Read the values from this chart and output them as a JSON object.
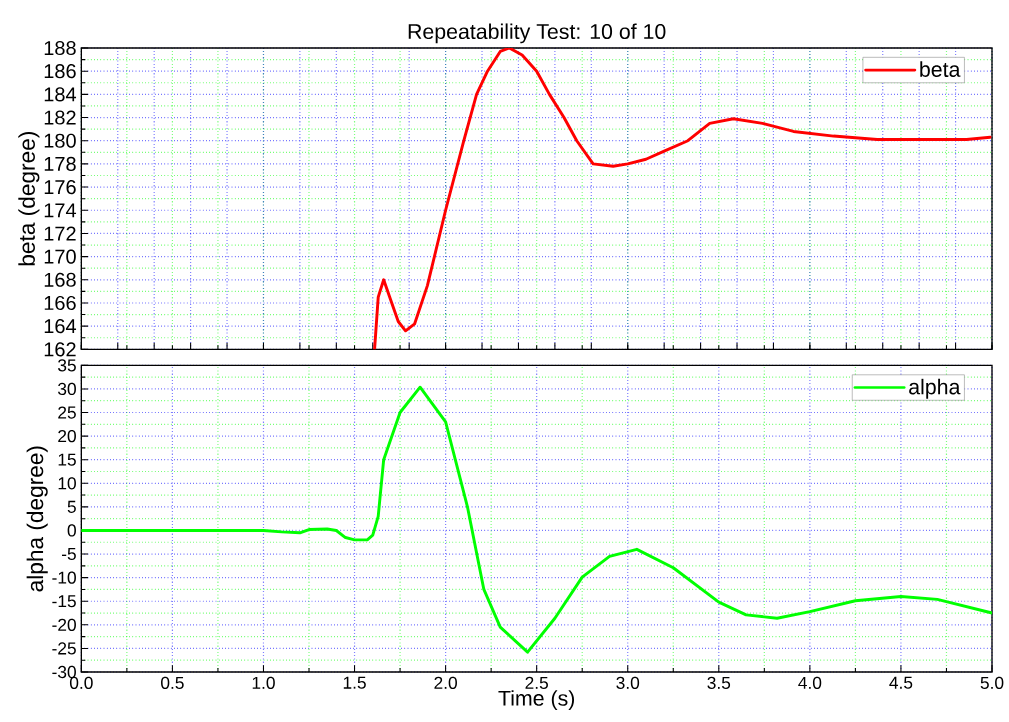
{
  "chart_data": [
    {
      "type": "line",
      "title": "Repeatability Test: 10 of 10",
      "ylabel": "beta (degree)",
      "xlim": [
        0,
        5
      ],
      "xticks": [
        {
          "value": 0,
          "label": null
        },
        {
          "value": 0.25,
          "label": null
        },
        {
          "value": 0.5,
          "label": null
        },
        {
          "value": 0.75,
          "label": null
        },
        {
          "value": 1,
          "label": null
        },
        {
          "value": 1.25,
          "label": null
        },
        {
          "value": 1.5,
          "label": null
        },
        {
          "value": 1.75,
          "label": null
        },
        {
          "value": 2,
          "label": null
        },
        {
          "value": 2.25,
          "label": null
        },
        {
          "value": 2.5,
          "label": null
        },
        {
          "value": 2.75,
          "label": null
        },
        {
          "value": 3,
          "label": null
        },
        {
          "value": 3.25,
          "label": null
        },
        {
          "value": 3.5,
          "label": null
        },
        {
          "value": 3.75,
          "label": null
        },
        {
          "value": 4,
          "label": null
        },
        {
          "value": 4.25,
          "label": null
        },
        {
          "value": 4.5,
          "label": null
        },
        {
          "value": 4.75,
          "label": null
        },
        {
          "value": 5,
          "label": null
        }
      ],
      "ylim": [
        162,
        188
      ],
      "yticks": [
        162,
        {
          "value": 163,
          "label": null
        },
        164,
        {
          "value": 165,
          "label": null
        },
        166,
        {
          "value": 167,
          "label": null
        },
        168,
        {
          "value": 169,
          "label": null
        },
        170,
        {
          "value": 171,
          "label": null
        },
        172,
        {
          "value": 173,
          "label": null
        },
        174,
        {
          "value": 175,
          "label": null
        },
        176,
        {
          "value": 177,
          "label": null
        },
        178,
        {
          "value": 179,
          "label": null
        },
        180,
        {
          "value": 181,
          "label": null
        },
        182,
        {
          "value": 183,
          "label": null
        },
        184,
        {
          "value": 185,
          "label": null
        },
        186,
        {
          "value": 187,
          "label": null
        },
        188
      ],
      "tick_labels": "y",
      "grid": true,
      "legend": "top right",
      "x": [
        1.61,
        1.63,
        1.66,
        1.7,
        1.74,
        1.78,
        1.83,
        1.9,
        2.0,
        2.1,
        2.17,
        2.23,
        2.3,
        2.35,
        2.42,
        2.5,
        2.57,
        2.65,
        2.72,
        2.81,
        2.92,
        3.0,
        3.1,
        3.2,
        3.33,
        3.45,
        3.58,
        3.74,
        3.91,
        4.13,
        4.37,
        4.6,
        4.86,
        4.99
      ],
      "series": [
        {
          "name": "beta",
          "color": "#ff0000",
          "values": [
            162,
            166.5,
            168,
            166.2,
            164.4,
            163.6,
            164.2,
            167.5,
            174,
            180,
            184,
            186,
            187.7,
            188,
            187.4,
            186,
            184,
            182,
            180,
            178,
            177.8,
            178,
            178.4,
            179.1,
            180,
            181.5,
            181.9,
            181.5,
            180.8,
            180.4,
            180.1,
            180.1,
            180.1,
            180.3
          ]
        }
      ]
    },
    {
      "type": "line",
      "xlabel": "Time (s)",
      "ylabel": "alpha (degree)",
      "xlim": [
        0,
        5
      ],
      "xticks": [
        {
          "value": 0,
          "label": "0.0"
        },
        {
          "value": 0.25,
          "label": null
        },
        {
          "value": 0.5,
          "label": "0.5"
        },
        {
          "value": 0.75,
          "label": null
        },
        {
          "value": 1,
          "label": "1.0"
        },
        {
          "value": 1.25,
          "label": null
        },
        {
          "value": 1.5,
          "label": "1.5"
        },
        {
          "value": 1.75,
          "label": null
        },
        {
          "value": 2,
          "label": "2.0"
        },
        {
          "value": 2.25,
          "label": null
        },
        {
          "value": 2.5,
          "label": "2.5"
        },
        {
          "value": 2.75,
          "label": null
        },
        {
          "value": 3,
          "label": "3.0"
        },
        {
          "value": 3.25,
          "label": null
        },
        {
          "value": 3.5,
          "label": "3.5"
        },
        {
          "value": 3.75,
          "label": null
        },
        {
          "value": 4,
          "label": "4.0"
        },
        {
          "value": 4.25,
          "label": null
        },
        {
          "value": 4.5,
          "label": "4.5"
        },
        {
          "value": 4.75,
          "label": null
        },
        {
          "value": 5,
          "label": "5.0"
        }
      ],
      "ylim": [
        -30,
        35
      ],
      "yticks": [
        -30,
        {
          "value": -27.5,
          "label": null
        },
        -25,
        {
          "value": -22.5,
          "label": null
        },
        -20,
        {
          "value": -17.5,
          "label": null
        },
        -15,
        {
          "value": -12.5,
          "label": null
        },
        -10,
        {
          "value": -7.5,
          "label": null
        },
        -5,
        {
          "value": -2.5,
          "label": null
        },
        0,
        {
          "value": 2.5,
          "label": null
        },
        5,
        {
          "value": 7.5,
          "label": null
        },
        10,
        {
          "value": 12.5,
          "label": null
        },
        15,
        {
          "value": 17.5,
          "label": null
        },
        20,
        {
          "value": 22.5,
          "label": null
        },
        25,
        {
          "value": 27.5,
          "label": null
        },
        30,
        {
          "value": 32.5,
          "label": null
        },
        35
      ],
      "grid": true,
      "legend": "top right",
      "x": [
        0,
        1.0,
        1.1,
        1.2,
        1.25,
        1.35,
        1.4,
        1.45,
        1.5,
        1.57,
        1.6,
        1.63,
        1.66,
        1.75,
        1.86,
        2.0,
        2.12,
        2.21,
        2.3,
        2.45,
        2.6,
        2.75,
        2.9,
        3.05,
        3.25,
        3.5,
        3.65,
        3.82,
        4.0,
        4.25,
        4.5,
        4.7,
        5.0
      ],
      "series": [
        {
          "name": "alpha",
          "color": "#00ff00",
          "values": [
            0,
            0,
            -0.3,
            -0.5,
            0.2,
            0.3,
            0,
            -1.5,
            -2,
            -2,
            -1,
            3,
            15,
            25,
            30.4,
            23,
            5,
            -12.5,
            -20.5,
            -25.8,
            -18.6,
            -9.9,
            -5.5,
            -4.0,
            -7.9,
            -15.2,
            -17.9,
            -18.6,
            -17.2,
            -14.9,
            -14.0,
            -14.6,
            -17.5
          ]
        }
      ]
    }
  ]
}
